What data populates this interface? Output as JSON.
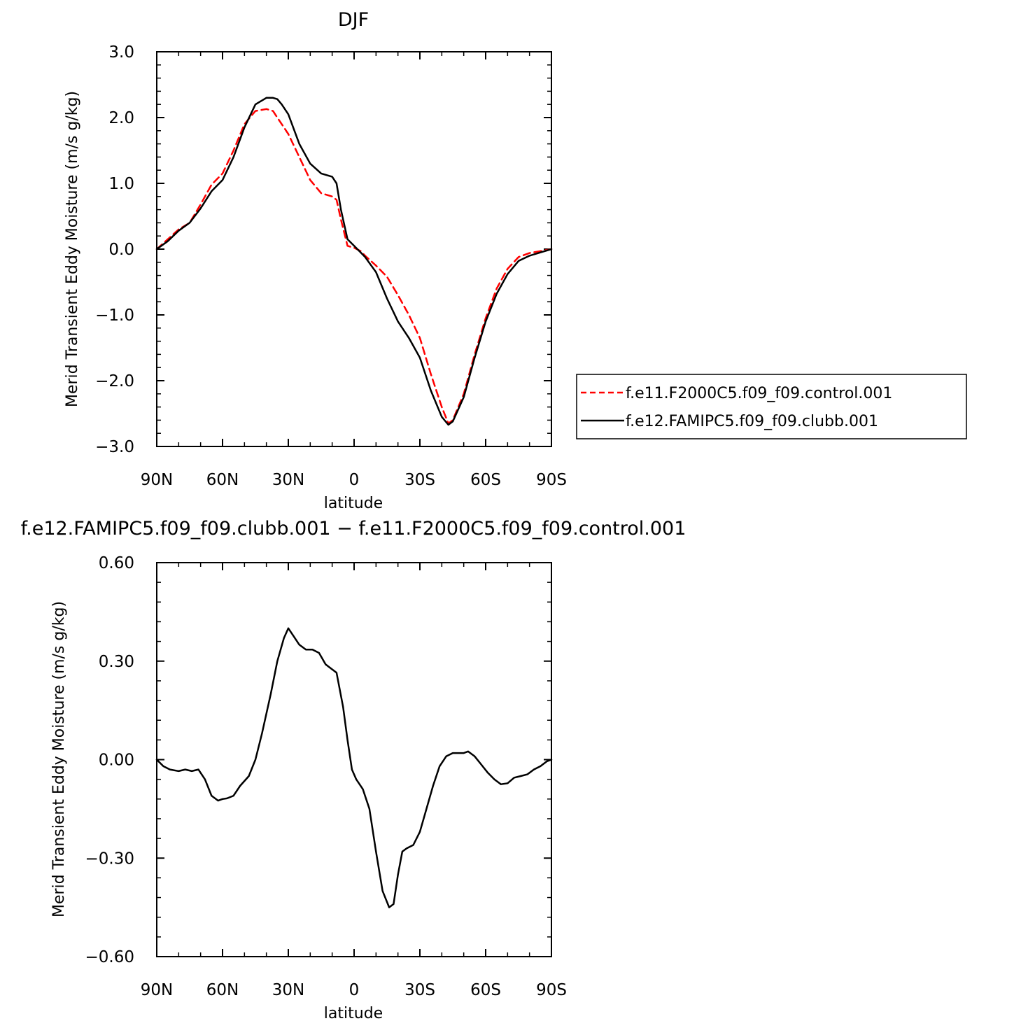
{
  "chart_data": [
    {
      "type": "line",
      "title": "DJF",
      "xlabel": "latitude",
      "ylabel": "Merid Transient Eddy Moisture (m/s g/kg)",
      "xlim": [
        90,
        -90
      ],
      "ylim": [
        -3.0,
        3.0
      ],
      "x_tick_values": [
        90,
        60,
        30,
        0,
        -30,
        -60,
        -90
      ],
      "x_tick_labels": [
        "90N",
        "60N",
        "30N",
        "0",
        "30S",
        "60S",
        "90S"
      ],
      "y_tick_values": [
        3.0,
        2.0,
        1.0,
        0.0,
        -1.0,
        -2.0,
        -3.0
      ],
      "y_tick_labels": [
        "3.0",
        "2.0",
        "1.0",
        "0.0",
        "−1.0",
        "−2.0",
        "−3.0"
      ],
      "grid": false,
      "legend_position": "right",
      "x": [
        90,
        85,
        80,
        75,
        70,
        65,
        60,
        55,
        50,
        45,
        40,
        37,
        35,
        33,
        30,
        25,
        20,
        15,
        10,
        8,
        6,
        3,
        0,
        -3,
        -5,
        -10,
        -15,
        -20,
        -25,
        -30,
        -35,
        -40,
        -43,
        -45,
        -50,
        -55,
        -60,
        -65,
        -70,
        -75,
        -80,
        -85,
        -90
      ],
      "series": [
        {
          "name": "f.e11.F2000C5.f09_f09.control.001",
          "color": "#ff0000",
          "dash": "dashed",
          "values": [
            0.0,
            0.15,
            0.3,
            0.4,
            0.68,
            0.98,
            1.15,
            1.5,
            1.9,
            2.1,
            2.13,
            2.1,
            2.0,
            1.9,
            1.75,
            1.4,
            1.05,
            0.85,
            0.8,
            0.75,
            0.45,
            0.05,
            0.02,
            -0.03,
            -0.1,
            -0.25,
            -0.42,
            -0.7,
            -1.0,
            -1.35,
            -1.9,
            -2.4,
            -2.65,
            -2.6,
            -2.2,
            -1.6,
            -1.05,
            -0.6,
            -0.3,
            -0.12,
            -0.06,
            -0.03,
            0.0
          ]
        },
        {
          "name": "f.e12.FAMIPC5.f09_f09.clubb.001",
          "color": "#000000",
          "dash": "solid",
          "values": [
            0.0,
            0.12,
            0.28,
            0.4,
            0.62,
            0.88,
            1.05,
            1.4,
            1.85,
            2.2,
            2.3,
            2.3,
            2.28,
            2.2,
            2.05,
            1.6,
            1.3,
            1.15,
            1.1,
            1.0,
            0.6,
            0.15,
            0.05,
            -0.05,
            -0.12,
            -0.35,
            -0.75,
            -1.1,
            -1.35,
            -1.65,
            -2.15,
            -2.55,
            -2.67,
            -2.62,
            -2.25,
            -1.65,
            -1.1,
            -0.68,
            -0.38,
            -0.18,
            -0.1,
            -0.05,
            0.0
          ]
        }
      ]
    },
    {
      "type": "line",
      "title": "f.e12.FAMIPC5.f09_f09.clubb.001 − f.e11.F2000C5.f09_f09.control.001",
      "xlabel": "latitude",
      "ylabel": "Merid Transient Eddy Moisture (m/s g/kg)",
      "xlim": [
        90,
        -90
      ],
      "ylim": [
        -0.6,
        0.6
      ],
      "x_tick_values": [
        90,
        60,
        30,
        0,
        -30,
        -60,
        -90
      ],
      "x_tick_labels": [
        "90N",
        "60N",
        "30N",
        "0",
        "30S",
        "60S",
        "90S"
      ],
      "y_tick_values": [
        0.6,
        0.3,
        0.0,
        -0.3,
        -0.6
      ],
      "y_tick_labels": [
        "0.60",
        "0.30",
        "0.00",
        "−0.30",
        "−0.60"
      ],
      "grid": false,
      "x": [
        90,
        87,
        84,
        80,
        77,
        74,
        71,
        68,
        65,
        62,
        60,
        58,
        55,
        52,
        48,
        45,
        42,
        38,
        35,
        32,
        30,
        28,
        25,
        22,
        19,
        16,
        13,
        11,
        8,
        5,
        3,
        1,
        -1,
        -4,
        -7,
        -10,
        -13,
        -16,
        -18,
        -20,
        -22,
        -24,
        -27,
        -30,
        -33,
        -36,
        -39,
        -42,
        -45,
        -48,
        -50,
        -52,
        -55,
        -58,
        -61,
        -64,
        -67,
        -70,
        -73,
        -76,
        -79,
        -82,
        -85,
        -88,
        -90
      ],
      "series": [
        {
          "name": "",
          "color": "#000000",
          "dash": "solid",
          "values": [
            0.0,
            -0.02,
            -0.03,
            -0.035,
            -0.03,
            -0.035,
            -0.03,
            -0.06,
            -0.11,
            -0.125,
            -0.12,
            -0.118,
            -0.11,
            -0.08,
            -0.05,
            0.0,
            0.08,
            0.2,
            0.3,
            0.37,
            0.4,
            0.38,
            0.35,
            0.335,
            0.335,
            0.325,
            0.29,
            0.28,
            0.265,
            0.16,
            0.06,
            -0.03,
            -0.06,
            -0.09,
            -0.15,
            -0.28,
            -0.4,
            -0.45,
            -0.44,
            -0.35,
            -0.28,
            -0.27,
            -0.26,
            -0.22,
            -0.15,
            -0.08,
            -0.02,
            0.01,
            0.02,
            0.02,
            0.02,
            0.025,
            0.01,
            -0.015,
            -0.04,
            -0.06,
            -0.075,
            -0.072,
            -0.055,
            -0.05,
            -0.045,
            -0.03,
            -0.02,
            -0.005,
            0.0
          ]
        }
      ]
    }
  ]
}
